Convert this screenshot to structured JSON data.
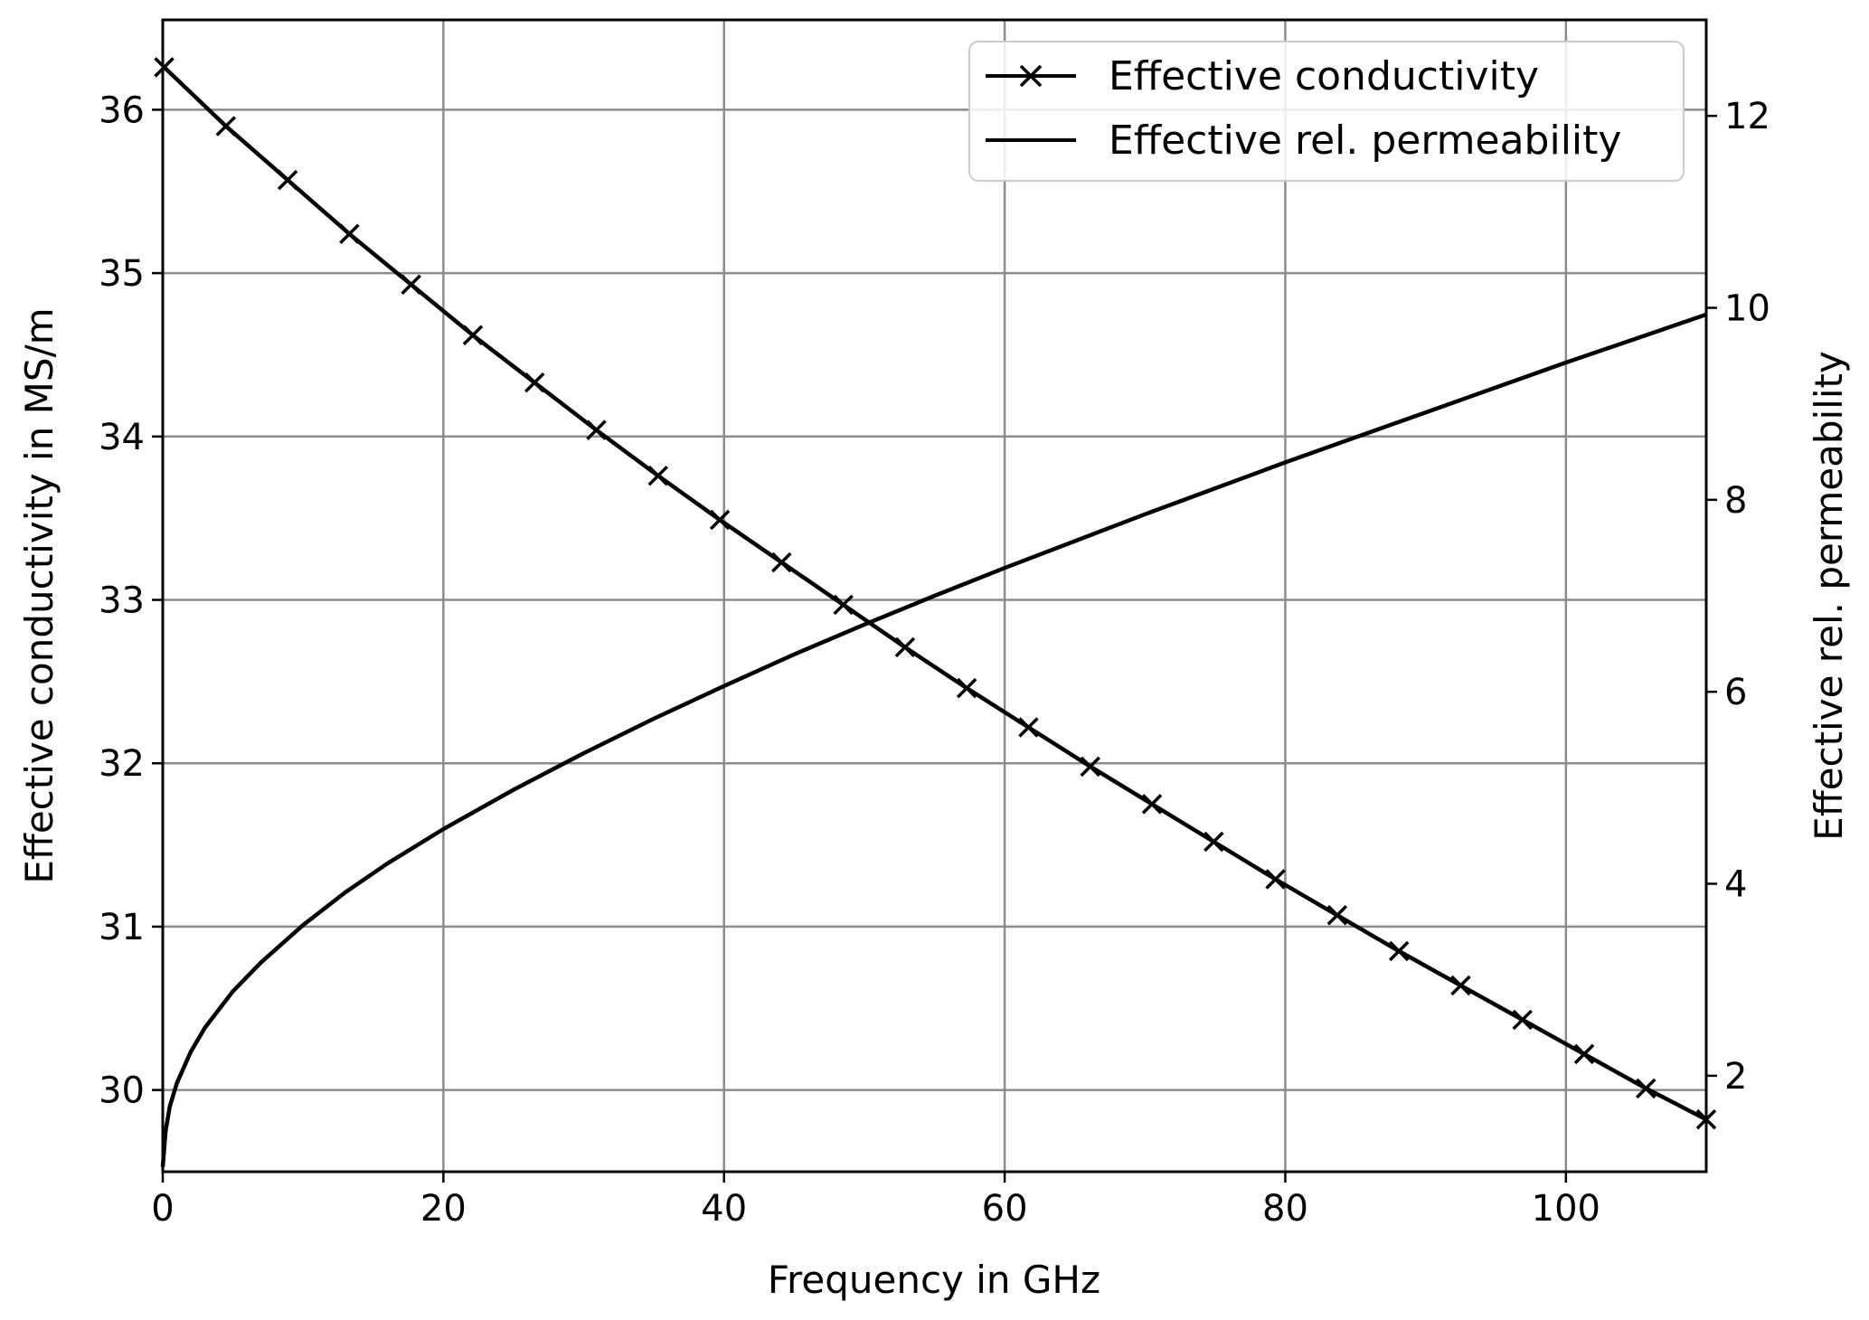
{
  "chart_data": {
    "type": "line",
    "title": "",
    "xlabel": "Frequency in GHz",
    "ylabel_left": "Effective conductivity in MS/m",
    "ylabel_right": "Effective rel. permeability",
    "xlim": [
      0,
      110
    ],
    "ylim_left": [
      29.5,
      36.55
    ],
    "ylim_right": [
      1.0,
      13.0
    ],
    "grid": true,
    "legend_position": "top-right",
    "x_ticks": [
      0,
      20,
      40,
      60,
      80,
      100
    ],
    "x_tick_labels": [
      "0",
      "20",
      "40",
      "60",
      "80",
      "100"
    ],
    "y_left_ticks": [
      30,
      31,
      32,
      33,
      34,
      35,
      36
    ],
    "y_left_tick_labels": [
      "30",
      "31",
      "32",
      "33",
      "34",
      "35",
      "36"
    ],
    "y_right_ticks": [
      2,
      4,
      6,
      8,
      10,
      12
    ],
    "y_right_tick_labels": [
      "2",
      "4",
      "6",
      "8",
      "10",
      "12"
    ],
    "series": [
      {
        "name": "Effective conductivity",
        "axis": "left",
        "marker": "x",
        "color": "#000000",
        "x": [
          0.1,
          4.5,
          8.9,
          13.3,
          17.7,
          22.1,
          26.5,
          30.9,
          35.3,
          39.7,
          44.1,
          48.5,
          52.9,
          57.3,
          61.7,
          66.1,
          70.5,
          74.9,
          79.3,
          83.7,
          88.1,
          92.5,
          96.9,
          101.3,
          105.7,
          110
        ],
        "y": [
          36.26,
          35.9,
          35.57,
          35.24,
          34.93,
          34.62,
          34.33,
          34.04,
          33.76,
          33.49,
          33.23,
          32.97,
          32.71,
          32.46,
          32.22,
          31.98,
          31.75,
          31.52,
          31.29,
          31.07,
          30.85,
          30.64,
          30.43,
          30.22,
          30.01,
          29.82
        ]
      },
      {
        "name": "Effective rel. permeability",
        "axis": "right",
        "marker": "none",
        "color": "#000000",
        "x": [
          0,
          0.2,
          0.5,
          1,
          2,
          3,
          5,
          7,
          10,
          13,
          16,
          20,
          25,
          30,
          35,
          40,
          45,
          50,
          55,
          60,
          65,
          70,
          75,
          80,
          85,
          90,
          95,
          100,
          105,
          110
        ],
        "y": [
          1.05,
          1.42,
          1.68,
          1.92,
          2.25,
          2.5,
          2.88,
          3.18,
          3.57,
          3.91,
          4.21,
          4.57,
          4.98,
          5.36,
          5.72,
          6.06,
          6.39,
          6.7,
          7.0,
          7.29,
          7.57,
          7.85,
          8.12,
          8.39,
          8.65,
          8.91,
          9.17,
          9.43,
          9.68,
          9.93
        ]
      }
    ]
  }
}
